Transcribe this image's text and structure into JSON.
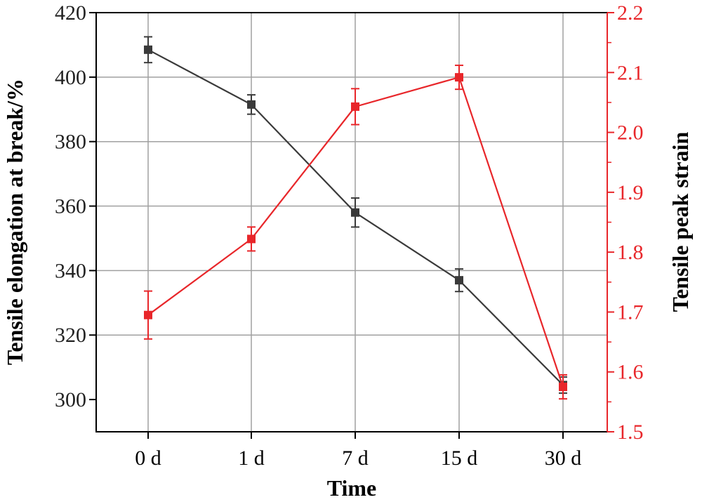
{
  "chart_data": {
    "type": "line",
    "categories": [
      "0 d",
      "1 d",
      "7 d",
      "15 d",
      "30 d"
    ],
    "xlabel": "Time",
    "ylabel_left": "Tensile elongation at break/%",
    "ylabel_right": "Tensile peak strain",
    "ylim_left": [
      290,
      420
    ],
    "ylim_right": [
      1.5,
      2.2
    ],
    "yticks_left": [
      300,
      320,
      340,
      360,
      380,
      400,
      420
    ],
    "yticks_right": [
      1.5,
      1.6,
      1.7,
      1.8,
      1.9,
      2.0,
      2.1,
      2.2
    ],
    "grid": true,
    "series": [
      {
        "axis": "left",
        "color": "#3a3a3a",
        "marker": "square",
        "values": [
          408.5,
          391.5,
          358,
          337,
          304.5
        ],
        "errors": [
          4,
          3,
          4.5,
          3.5,
          2.5
        ]
      },
      {
        "axis": "right",
        "color": "#e8262a",
        "marker": "square",
        "values": [
          1.695,
          1.822,
          2.043,
          2.092,
          1.575
        ],
        "errors": [
          0.04,
          0.02,
          0.03,
          0.02,
          0.02
        ]
      }
    ]
  }
}
